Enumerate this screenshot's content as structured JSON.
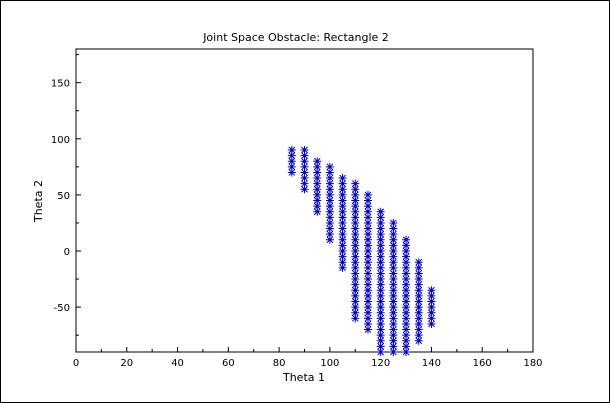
{
  "chart_data": {
    "type": "scatter",
    "title": "Joint Space Obstacle: Rectangle 2",
    "xlabel": "Theta 1",
    "ylabel": "Theta 2",
    "xlim": [
      0,
      180
    ],
    "ylim": [
      -90,
      180
    ],
    "xticks": [
      0,
      20,
      40,
      60,
      80,
      100,
      120,
      140,
      160,
      180
    ],
    "yticks": [
      -50,
      0,
      50,
      100,
      150
    ],
    "grid": false,
    "marker": "asterisk",
    "marker_color": "#0000cc",
    "columns": [
      {
        "x": 85,
        "y_min": 70,
        "y_max": 90
      },
      {
        "x": 90,
        "y_min": 55,
        "y_max": 90
      },
      {
        "x": 95,
        "y_min": 35,
        "y_max": 80
      },
      {
        "x": 100,
        "y_min": 10,
        "y_max": 75
      },
      {
        "x": 105,
        "y_min": -15,
        "y_max": 65
      },
      {
        "x": 110,
        "y_min": -60,
        "y_max": 60
      },
      {
        "x": 115,
        "y_min": -70,
        "y_max": 50
      },
      {
        "x": 120,
        "y_min": -90,
        "y_max": 35
      },
      {
        "x": 125,
        "y_min": -90,
        "y_max": 25
      },
      {
        "x": 130,
        "y_min": -90,
        "y_max": 10
      },
      {
        "x": 135,
        "y_min": -80,
        "y_max": -10
      },
      {
        "x": 140,
        "y_min": -65,
        "y_max": -35
      }
    ],
    "y_step": 5
  }
}
